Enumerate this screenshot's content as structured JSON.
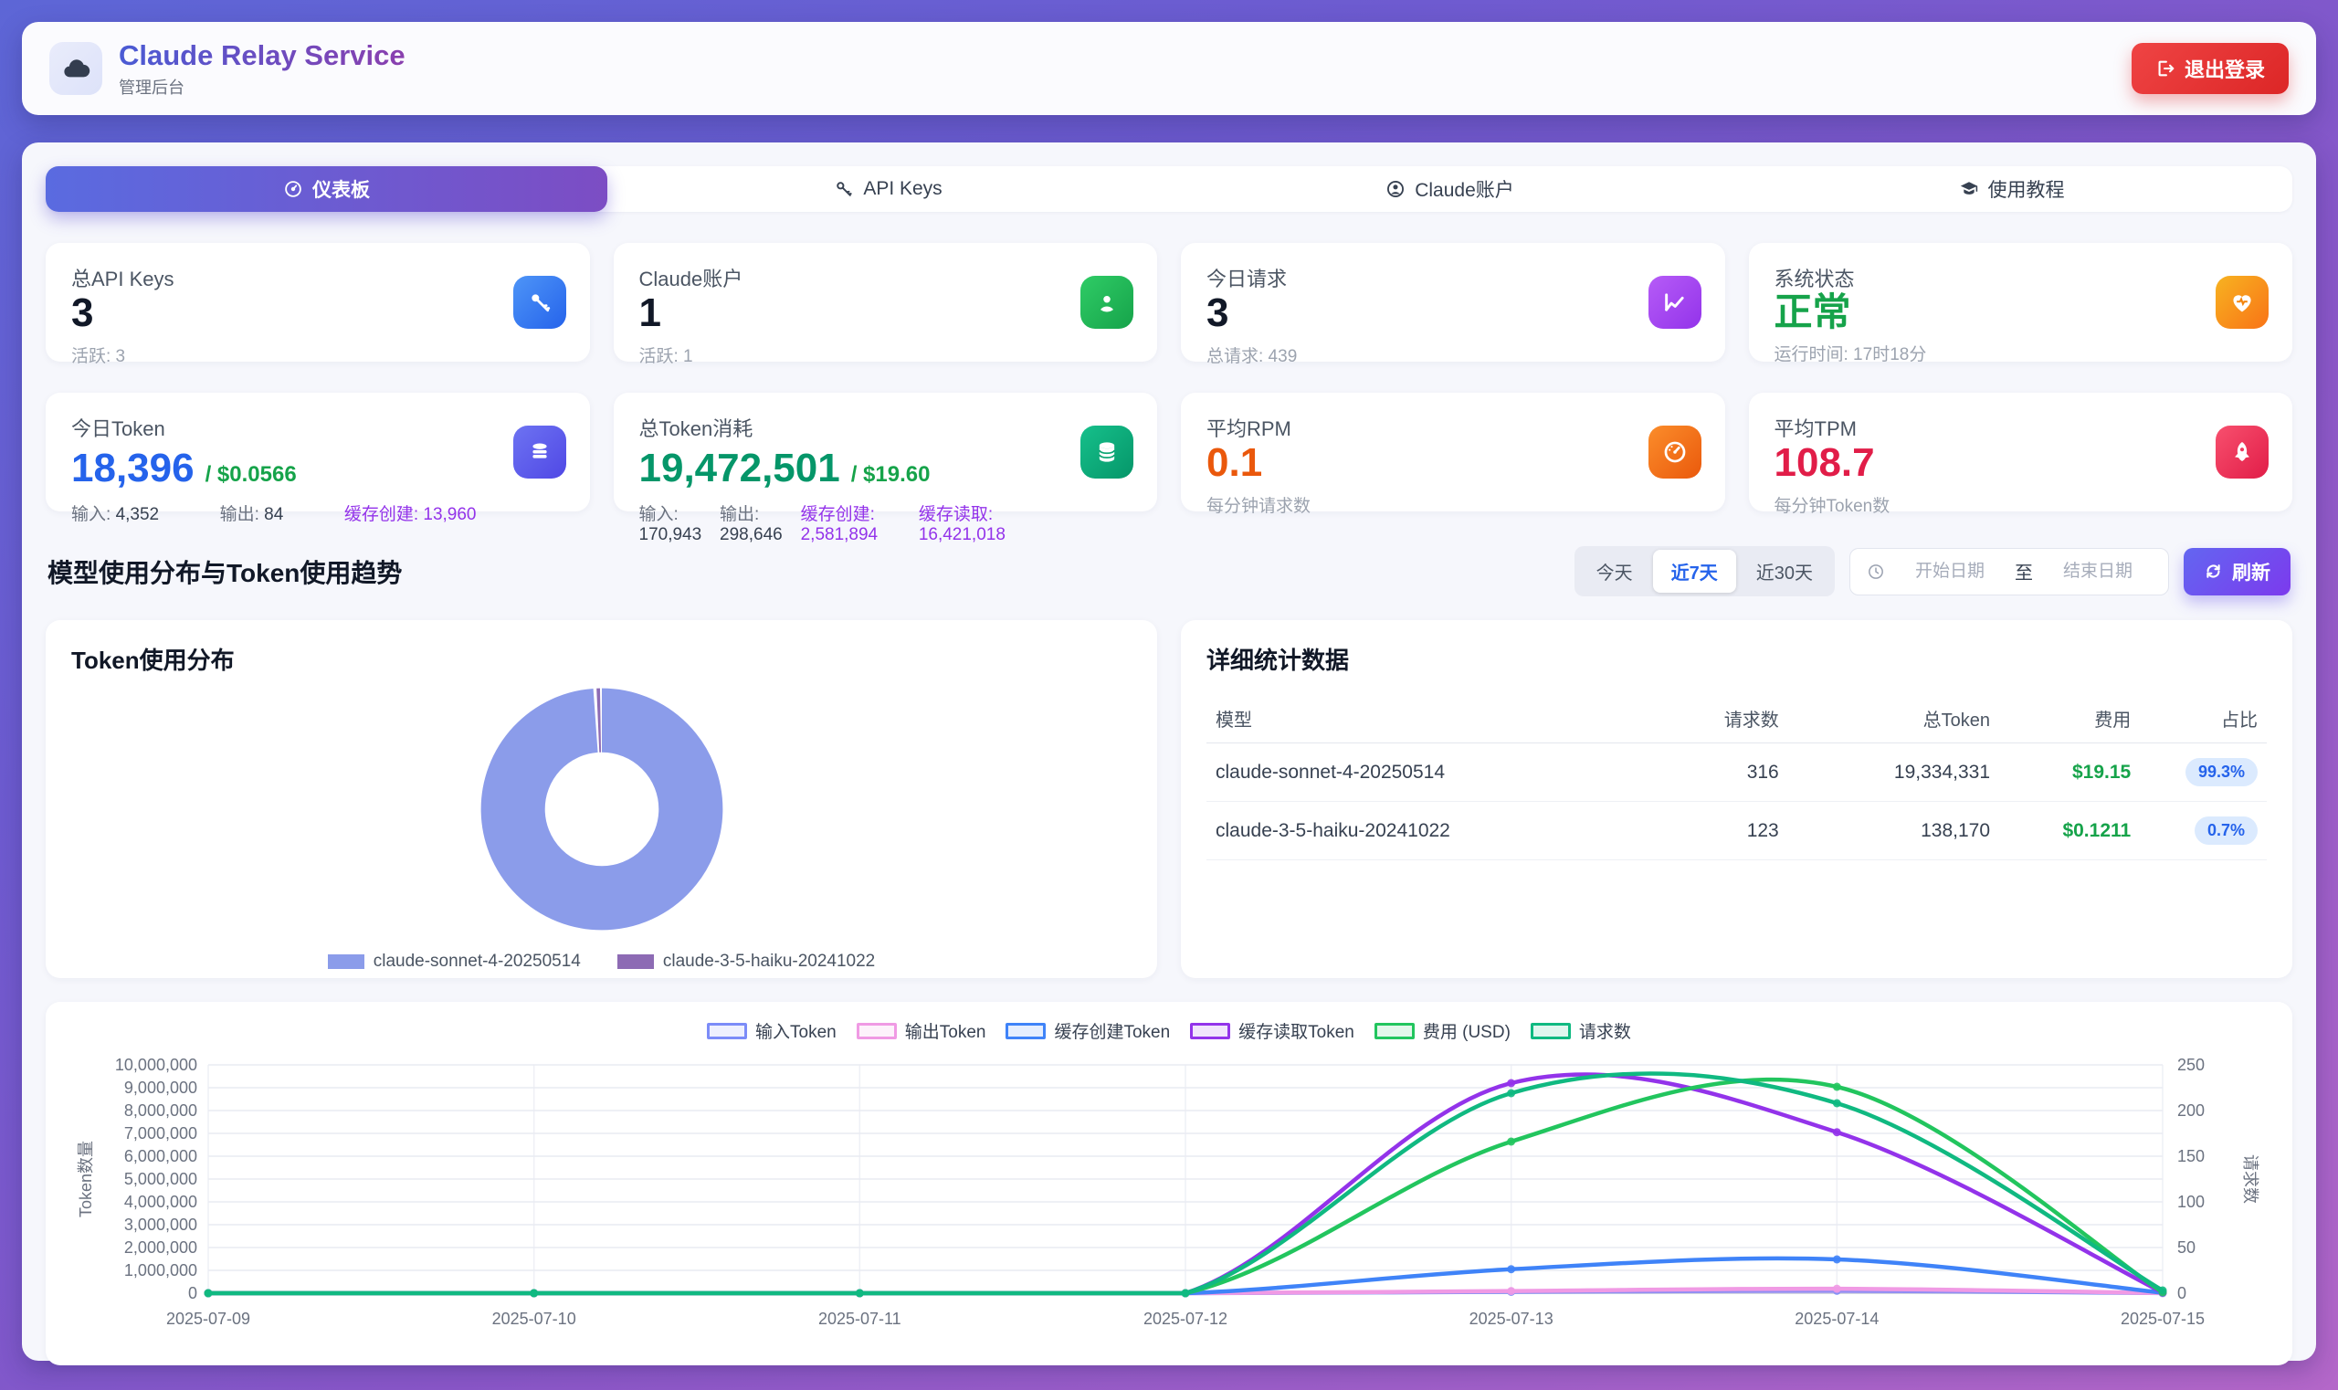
{
  "header": {
    "title": "Claude Relay Service",
    "subtitle": "管理后台",
    "logout_label": "退出登录"
  },
  "tabs": [
    {
      "label": "仪表板",
      "active": true
    },
    {
      "label": "API Keys",
      "active": false
    },
    {
      "label": "Claude账户",
      "active": false
    },
    {
      "label": "使用教程",
      "active": false
    }
  ],
  "stats_row1": [
    {
      "label": "总API Keys",
      "value": "3",
      "sub": "活跃: 3"
    },
    {
      "label": "Claude账户",
      "value": "1",
      "sub": "活跃: 1"
    },
    {
      "label": "今日请求",
      "value": "3",
      "sub": "总请求: 439"
    },
    {
      "label": "系统状态",
      "value": "正常",
      "sub": "运行时间: 17时18分"
    }
  ],
  "stats_row2": [
    {
      "label": "今日Token",
      "value": "18,396",
      "cost": "/ $0.0566",
      "details": [
        {
          "k": "输入:",
          "v": "4,352"
        },
        {
          "k": "输出:",
          "v": "84"
        },
        {
          "k": "缓存创建:",
          "v": "13,960"
        }
      ]
    },
    {
      "label": "总Token消耗",
      "value": "19,472,501",
      "cost": "/ $19.60",
      "details": [
        {
          "k": "输入:",
          "v": "170,943"
        },
        {
          "k": "输出:",
          "v": "298,646"
        },
        {
          "k": "缓存创建:",
          "v": "2,581,894"
        },
        {
          "k": "缓存读取:",
          "v": "16,421,018"
        }
      ]
    },
    {
      "label": "平均RPM",
      "value": "0.1",
      "sub": "每分钟请求数"
    },
    {
      "label": "平均TPM",
      "value": "108.7",
      "sub": "每分钟Token数"
    }
  ],
  "filters": {
    "section_title": "模型使用分布与Token使用趋势",
    "ranges": [
      "今天",
      "近7天",
      "近30天"
    ],
    "active_range": "近7天",
    "date_start_placeholder": "开始日期",
    "date_separator": "至",
    "date_end_placeholder": "结束日期",
    "refresh_label": "刷新"
  },
  "donut_panel": {
    "title": "Token使用分布"
  },
  "table_panel": {
    "title": "详细统计数据",
    "columns": [
      "模型",
      "请求数",
      "总Token",
      "费用",
      "占比"
    ],
    "rows": [
      {
        "model": "claude-sonnet-4-20250514",
        "requests": "316",
        "tokens": "19,334,331",
        "cost": "$19.15",
        "share": "99.3%"
      },
      {
        "model": "claude-3-5-haiku-20241022",
        "requests": "123",
        "tokens": "138,170",
        "cost": "$0.1211",
        "share": "0.7%"
      }
    ]
  },
  "chart_data": [
    {
      "type": "pie",
      "title": "Token使用分布",
      "labels": [
        "claude-sonnet-4-20250514",
        "claude-3-5-haiku-20241022"
      ],
      "values": [
        99.3,
        0.7
      ],
      "colors": [
        "#8b9cea",
        "#8d6bb4"
      ]
    },
    {
      "type": "line",
      "x": [
        "2025-07-09",
        "2025-07-10",
        "2025-07-11",
        "2025-07-12",
        "2025-07-13",
        "2025-07-14",
        "2025-07-15"
      ],
      "ylabel_left": "Token数量",
      "ylabel_right": "请求数",
      "ylim_left": [
        0,
        10000000
      ],
      "ylim_right": [
        0,
        250
      ],
      "grid": true,
      "legend_position": "top",
      "series": [
        {
          "name": "输入Token",
          "axis": "left",
          "color": "#7c8cf8",
          "values": [
            0,
            0,
            0,
            0,
            60000,
            105000,
            4000
          ]
        },
        {
          "name": "输出Token",
          "axis": "left",
          "color": "#f09ae4",
          "area": true,
          "values": [
            0,
            0,
            0,
            0,
            95000,
            195000,
            8000
          ]
        },
        {
          "name": "缓存创建Token",
          "axis": "left",
          "color": "#3f83f8",
          "values": [
            0,
            0,
            0,
            0,
            1050000,
            1480000,
            20000
          ]
        },
        {
          "name": "缓存读取Token",
          "axis": "left",
          "color": "#9333ea",
          "values": [
            0,
            0,
            0,
            0,
            9200000,
            7050000,
            30000
          ]
        },
        {
          "name": "费用 (USD)",
          "axis": "hidden",
          "hidden_max": 12.5,
          "color": "#22c55e",
          "values": [
            0,
            0,
            0,
            0,
            8.3,
            11.3,
            0.05
          ]
        },
        {
          "name": "请求数",
          "axis": "right",
          "color": "#10b981",
          "values": [
            0,
            0,
            0,
            0,
            219,
            208,
            3
          ]
        }
      ]
    }
  ]
}
